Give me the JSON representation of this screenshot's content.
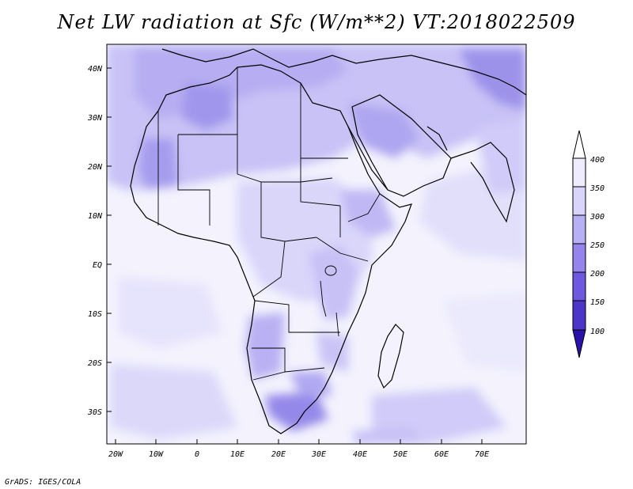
{
  "title": "Net LW radiation at Sfc (W/m**2) VT:2018022509",
  "footer": "GrADS: IGES/COLA",
  "map": {
    "x_range": [
      -23,
      80
    ],
    "y_range": [
      -37,
      45
    ],
    "lat_labels": [
      "40N",
      "30N",
      "20N",
      "10N",
      "EQ",
      "10S",
      "20S",
      "30S"
    ],
    "lon_labels": [
      "20W",
      "10W",
      "0",
      "10E",
      "20E",
      "30E",
      "40E",
      "50E",
      "60E",
      "70E"
    ],
    "colors": {
      "frame": "#000000",
      "coast": "#000000",
      "ocean": "#f2f2fd"
    }
  },
  "colorbar": {
    "levels": [
      "100",
      "150",
      "200",
      "250",
      "300",
      "350",
      "400"
    ],
    "colors": [
      "#2a12a8",
      "#4b36c8",
      "#6e58e0",
      "#9484ec",
      "#b8b0f4",
      "#d8d4fa",
      "#eeecfd"
    ]
  }
}
